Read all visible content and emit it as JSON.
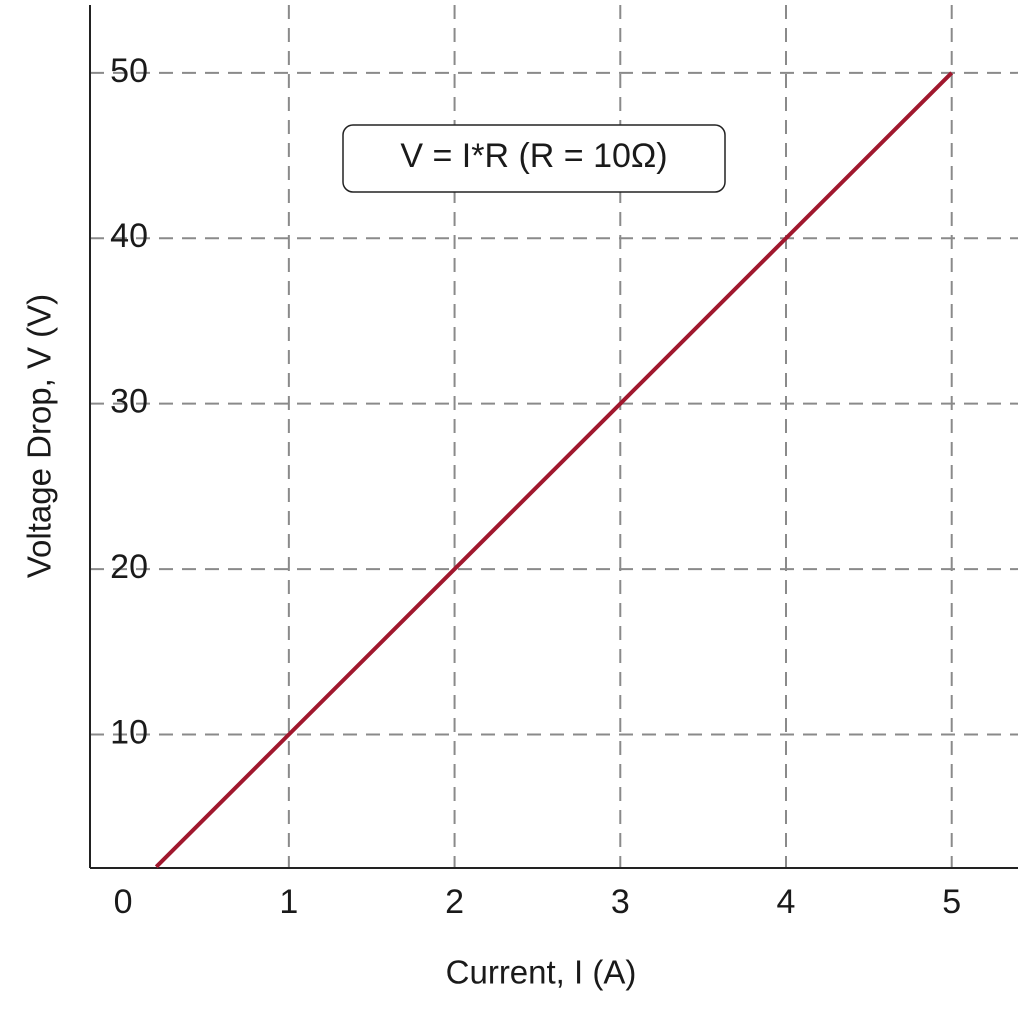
{
  "chart_data": {
    "type": "line",
    "x_label": "Current, I (A)",
    "y_label": "Voltage Drop, V (V)",
    "annotation": "V = I*R (R = 10Ω)",
    "x": [
      0.2,
      1,
      2,
      3,
      4,
      5
    ],
    "series": [
      {
        "color": "#a0182e",
        "values": [
          2,
          10,
          20,
          30,
          40,
          50
        ]
      }
    ],
    "xlim": [
      -0.2,
      5.4
    ],
    "ylim": [
      1.93,
      54.1
    ],
    "xticks": [
      0,
      1,
      2,
      3,
      4,
      5
    ],
    "yticks": [
      10,
      20,
      30,
      40,
      50
    ],
    "grid": true
  }
}
